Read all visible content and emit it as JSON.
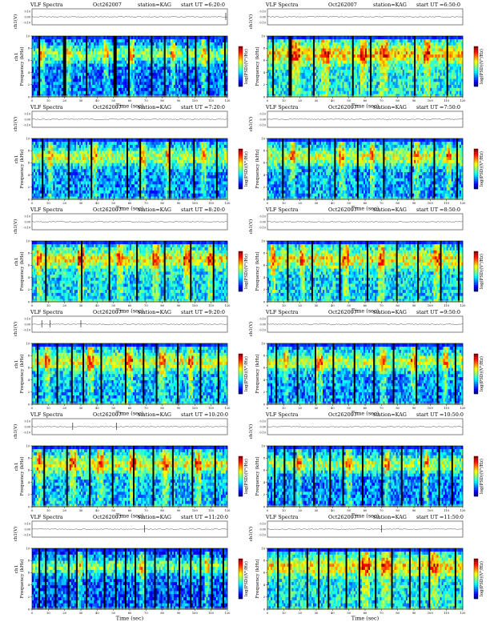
{
  "page": {
    "rows": [
      [
        "p1",
        "p2"
      ],
      [
        "p3",
        "p4"
      ],
      [
        "p5",
        "p6"
      ],
      [
        "p7",
        "p8"
      ],
      [
        "p9",
        "p10"
      ],
      [
        "p11",
        "p12"
      ]
    ]
  },
  "colors": {
    "scale": [
      "#00007f",
      "#0000ff",
      "#007fff",
      "#00ffff",
      "#7fff7f",
      "#ffff00",
      "#ff7f00",
      "#ff0000",
      "#7f0000"
    ],
    "dropout": "#000000",
    "hum_line": "#d8e04a"
  },
  "chart_data": [
    {
      "id": "p1",
      "type": "heatmap",
      "title": "VLF Spectra",
      "date": "Oct262007",
      "station": "station=KAG",
      "start": "start  UT =6:20:0",
      "ch_label": "ch1(V)",
      "ch_ticks": [
        "0.10",
        "0.00",
        "-0.10"
      ],
      "xlabel": "Time (sec)",
      "ylabel": "Frequency (kHz)",
      "ylabel_prefix": "ch1",
      "colorbar_label": "log(PSD)(V²/Hz)",
      "xlim": [
        0,
        120
      ],
      "ylim": [
        0,
        10
      ],
      "xticks": [
        "0",
        "10",
        "20",
        "30",
        "40",
        "50",
        "60",
        "70",
        "80",
        "90",
        "100",
        "110",
        "120"
      ],
      "yticks": [
        "0",
        "2",
        "4",
        "6",
        "8",
        "10"
      ],
      "intensity": 0.33,
      "seed": 11,
      "dropouts_sec": [
        4,
        19,
        20,
        33,
        50,
        51,
        59,
        73,
        81,
        95,
        100,
        108,
        118
      ],
      "bright_bands_sec": [
        [
          5,
          8
        ],
        [
          21,
          24
        ],
        [
          44,
          47
        ],
        [
          60,
          63
        ],
        [
          85,
          88
        ],
        [
          104,
          107
        ]
      ],
      "spikes_sec": [
        119
      ]
    },
    {
      "id": "p2",
      "type": "heatmap",
      "title": "VLF Spectra",
      "date": "Oct262007",
      "station": "station=KAG",
      "start": "start  UT =6:50:0",
      "ch_label": "ch1(V)",
      "ch_ticks": [
        "0.10",
        "0.00",
        "-0.10"
      ],
      "xlabel": "Time (sec)",
      "ylabel": "Frequency (kHz)",
      "ylabel_prefix": "",
      "colorbar_label": "log(PSD)(V²/Hz)",
      "xlim": [
        0,
        120
      ],
      "ylim": [
        0,
        10
      ],
      "xticks": [
        "0",
        "10",
        "20",
        "30",
        "40",
        "50",
        "60",
        "70",
        "80",
        "90",
        "100",
        "110",
        "120"
      ],
      "yticks": [
        "0",
        "2",
        "4",
        "6",
        "8",
        "10"
      ],
      "intensity": 0.55,
      "seed": 23,
      "dropouts_sec": [
        3,
        13,
        14,
        28,
        52,
        63,
        90,
        110
      ],
      "bright_bands_sec": [
        [
          15,
          20
        ],
        [
          33,
          38
        ],
        [
          57,
          61
        ],
        [
          69,
          74
        ],
        [
          96,
          100
        ]
      ],
      "spikes_sec": []
    },
    {
      "id": "p3",
      "type": "heatmap",
      "title": "VLF Spectra",
      "date": "Oct262007",
      "station": "station=KAG",
      "start": "start  UT =7:20:0",
      "ch_label": "ch1(V)",
      "ch_ticks": [
        "0.10",
        "0.00",
        "-0.10"
      ],
      "xlabel": "Time (sec)",
      "ylabel": "Frequency (kHz)",
      "ylabel_prefix": "ch1",
      "colorbar_label": "log(PSD)(V²/Hz)",
      "xlim": [
        0,
        120
      ],
      "ylim": [
        0,
        10
      ],
      "xticks": [
        "0",
        "10",
        "20",
        "30",
        "40",
        "50",
        "60",
        "70",
        "80",
        "90",
        "100",
        "110",
        "120"
      ],
      "yticks": [
        "0",
        "2",
        "4",
        "6",
        "8",
        "10"
      ],
      "intensity": 0.4,
      "seed": 37,
      "dropouts_sec": [
        6,
        22,
        36,
        58,
        66,
        84,
        99,
        113
      ],
      "bright_bands_sec": [
        [
          10,
          13
        ],
        [
          37,
          40
        ],
        [
          66,
          70
        ],
        [
          82,
          85
        ],
        [
          104,
          107
        ]
      ],
      "spikes_sec": []
    },
    {
      "id": "p4",
      "type": "heatmap",
      "title": "VLF Spectra",
      "date": "Oct262007",
      "station": "station=KAG",
      "start": "start  UT =7:50:0",
      "ch_label": "ch1(V)",
      "ch_ticks": [
        "0.10",
        "0.00",
        "-0.10"
      ],
      "xlabel": "Time (sec)",
      "ylabel": "Frequency (kHz)",
      "ylabel_prefix": "",
      "colorbar_label": "log(PSD)(V²/Hz)",
      "xlim": [
        0,
        120
      ],
      "ylim": [
        0,
        10
      ],
      "xticks": [
        "0",
        "10",
        "20",
        "30",
        "40",
        "50",
        "60",
        "70",
        "80",
        "90",
        "100",
        "110",
        "120"
      ],
      "yticks": [
        "0",
        "2",
        "4",
        "6",
        "8",
        "10"
      ],
      "intensity": 0.42,
      "seed": 41,
      "dropouts_sec": [
        9,
        25,
        41,
        55,
        71,
        88,
        102,
        116
      ],
      "bright_bands_sec": [
        [
          14,
          17
        ],
        [
          44,
          48
        ],
        [
          63,
          66
        ],
        [
          90,
          93
        ],
        [
          110,
          113
        ]
      ],
      "spikes_sec": []
    },
    {
      "id": "p5",
      "type": "heatmap",
      "title": "VLF Spectra",
      "date": "Oct262007",
      "station": "station=KAG",
      "start": "start  UT =8:20:0",
      "ch_label": "ch1(V)",
      "ch_ticks": [
        "0.10",
        "0.00",
        "-0.10"
      ],
      "xlabel": "Time (sec)",
      "ylabel": "Frequency (kHz)",
      "ylabel_prefix": "ch1",
      "colorbar_label": "log(PSD)(V²/Hz)",
      "xlim": [
        0,
        120
      ],
      "ylim": [
        0,
        10
      ],
      "xticks": [
        "0",
        "10",
        "20",
        "30",
        "40",
        "50",
        "60",
        "70",
        "80",
        "90",
        "100",
        "110",
        "120"
      ],
      "yticks": [
        "0",
        "2",
        "4",
        "6",
        "8",
        "10"
      ],
      "intensity": 0.5,
      "seed": 53,
      "dropouts_sec": [
        8,
        30,
        47,
        64,
        81,
        97,
        111
      ],
      "bright_bands_sec": [
        [
          3,
          6
        ],
        [
          28,
          32
        ],
        [
          52,
          56
        ],
        [
          74,
          78
        ],
        [
          93,
          97
        ],
        [
          108,
          111
        ]
      ],
      "spikes_sec": []
    },
    {
      "id": "p6",
      "type": "heatmap",
      "title": "VLF Spectra",
      "date": "Oct262007",
      "station": "station=KAG",
      "start": "start  UT =8:50:0",
      "ch_label": "ch1(V)",
      "ch_ticks": [
        "0.10",
        "0.00",
        "-0.10"
      ],
      "xlabel": "Time (sec)",
      "ylabel": "Frequency (kHz)",
      "ylabel_prefix": "",
      "colorbar_label": "log(PSD)(V²/Hz)",
      "xlim": [
        0,
        120
      ],
      "ylim": [
        0,
        10
      ],
      "xticks": [
        "0",
        "10",
        "20",
        "30",
        "40",
        "50",
        "60",
        "70",
        "80",
        "90",
        "100",
        "110",
        "120"
      ],
      "yticks": [
        "0",
        "2",
        "4",
        "6",
        "8",
        "10"
      ],
      "intensity": 0.5,
      "seed": 67,
      "dropouts_sec": [
        12,
        27,
        44,
        61,
        79,
        92,
        106,
        117
      ],
      "bright_bands_sec": [
        [
          2,
          5
        ],
        [
          20,
          23
        ],
        [
          46,
          50
        ],
        [
          68,
          72
        ],
        [
          102,
          106
        ]
      ],
      "spikes_sec": []
    },
    {
      "id": "p7",
      "type": "heatmap",
      "title": "VLF Spectra",
      "date": "Oct262007",
      "station": "station=KAG",
      "start": "start  UT =9:20:0",
      "ch_label": "ch1(V)",
      "ch_ticks": [
        "0.10",
        "0.00",
        "-0.10"
      ],
      "xlabel": "Time (sec)",
      "ylabel": "Frequency (kHz)",
      "ylabel_prefix": "ch1",
      "colorbar_label": "log(PSD)(V²/Hz)",
      "xlim": [
        0,
        120
      ],
      "ylim": [
        0,
        10
      ],
      "xticks": [
        "0",
        "10",
        "20",
        "30",
        "40",
        "50",
        "60",
        "70",
        "80",
        "90",
        "100",
        "110",
        "120"
      ],
      "yticks": [
        "0",
        "2",
        "4",
        "6",
        "8",
        "10"
      ],
      "intensity": 0.45,
      "seed": 71,
      "dropouts_sec": [
        3,
        15,
        24,
        31,
        42,
        57,
        68,
        76,
        89,
        103,
        114
      ],
      "bright_bands_sec": [
        [
          8,
          11
        ],
        [
          34,
          38
        ],
        [
          58,
          62
        ],
        [
          78,
          82
        ],
        [
          96,
          99
        ]
      ],
      "spikes_sec": [
        6,
        11,
        30
      ]
    },
    {
      "id": "p8",
      "type": "heatmap",
      "title": "VLF Spectra",
      "date": "Oct262007",
      "station": "station=KAG",
      "start": "start  UT =9:50:0",
      "ch_label": "ch1(V)",
      "ch_ticks": [
        "0.10",
        "0.00",
        "-0.10"
      ],
      "xlabel": "Time (sec)",
      "ylabel": "Frequency (kHz)",
      "ylabel_prefix": "",
      "colorbar_label": "log(PSD)(V²/Hz)",
      "xlim": [
        0,
        120
      ],
      "ylim": [
        0,
        10
      ],
      "xticks": [
        "0",
        "10",
        "20",
        "30",
        "40",
        "50",
        "60",
        "70",
        "80",
        "90",
        "100",
        "110",
        "120"
      ],
      "yticks": [
        "0",
        "2",
        "4",
        "6",
        "8",
        "10"
      ],
      "intensity": 0.4,
      "seed": 83,
      "dropouts_sec": [
        5,
        18,
        29,
        40,
        53,
        65,
        77,
        91,
        104,
        115
      ],
      "bright_bands_sec": [
        [
          10,
          13
        ],
        [
          30,
          34
        ],
        [
          69,
          73
        ],
        [
          88,
          91
        ],
        [
          108,
          111
        ]
      ],
      "spikes_sec": []
    },
    {
      "id": "p9",
      "type": "heatmap",
      "title": "VLF Spectra",
      "date": "Oct262007",
      "station": "station=KAG",
      "start": "start  UT =10:20:0",
      "ch_label": "ch1(V)",
      "ch_ticks": [
        "0.10",
        "0.00",
        "-0.10"
      ],
      "xlabel": "Time (sec)",
      "ylabel": "Frequency (kHz)",
      "ylabel_prefix": "ch1",
      "colorbar_label": "log(PSD)(V²/Hz)",
      "xlim": [
        0,
        120
      ],
      "ylim": [
        0,
        10
      ],
      "xticks": [
        "0",
        "10",
        "20",
        "30",
        "40",
        "50",
        "60",
        "70",
        "80",
        "90",
        "100",
        "110",
        "120"
      ],
      "yticks": [
        "0",
        "2",
        "4",
        "6",
        "8",
        "10"
      ],
      "intensity": 0.45,
      "seed": 97,
      "dropouts_sec": [
        7,
        21,
        35,
        49,
        62,
        74,
        86,
        98,
        112
      ],
      "bright_bands_sec": [
        [
          3,
          6
        ],
        [
          23,
          27
        ],
        [
          40,
          44
        ],
        [
          60,
          64
        ],
        [
          80,
          84
        ],
        [
          100,
          104
        ]
      ],
      "spikes_sec": [
        25,
        52
      ]
    },
    {
      "id": "p10",
      "type": "heatmap",
      "title": "VLF Spectra",
      "date": "Oct262007",
      "station": "station=KAG",
      "start": "start  UT =10:50:0",
      "ch_label": "ch1(V)",
      "ch_ticks": [
        "0.10",
        "0.00",
        "-0.10"
      ],
      "xlabel": "Time (sec)",
      "ylabel": "Frequency (kHz)",
      "ylabel_prefix": "",
      "colorbar_label": "log(PSD)(V²/Hz)",
      "xlim": [
        0,
        120
      ],
      "ylim": [
        0,
        10
      ],
      "xticks": [
        "0",
        "10",
        "20",
        "30",
        "40",
        "50",
        "60",
        "70",
        "80",
        "90",
        "100",
        "110",
        "120"
      ],
      "yticks": [
        "0",
        "2",
        "4",
        "6",
        "8",
        "10"
      ],
      "intensity": 0.38,
      "seed": 101,
      "dropouts_sec": [
        4,
        10,
        16,
        28,
        38,
        46,
        58,
        70,
        82,
        94,
        105,
        113
      ],
      "bright_bands_sec": [
        [
          18,
          21
        ],
        [
          48,
          52
        ],
        [
          72,
          75
        ],
        [
          96,
          99
        ]
      ],
      "spikes_sec": []
    },
    {
      "id": "p11",
      "type": "heatmap",
      "title": "VLF Spectra",
      "date": "Oct262007",
      "station": "station=KAG",
      "start": "start  UT =11:20:0",
      "ch_label": "ch1(V)",
      "ch_ticks": [
        "0.10",
        "0.00",
        "-0.10"
      ],
      "xlabel": "Time (sec)",
      "ylabel": "Frequency (kHz)",
      "ylabel_prefix": "ch1",
      "colorbar_label": "log(PSD)(V²/Hz)",
      "xlim": [
        0,
        120
      ],
      "ylim": [
        0,
        10
      ],
      "xticks": [
        "0",
        "10",
        "20",
        "30",
        "40",
        "50",
        "60",
        "70",
        "80",
        "90",
        "100",
        "110",
        "120"
      ],
      "yticks": [
        "0",
        "2",
        "4",
        "6",
        "8",
        "10"
      ],
      "intensity": 0.3,
      "seed": 113,
      "dropouts_sec": [
        4,
        8,
        14,
        22,
        27,
        33,
        44,
        51,
        57,
        63,
        69,
        75,
        83,
        90,
        97,
        103,
        110,
        117
      ],
      "bright_bands_sec": [
        [
          28,
          31
        ],
        [
          66,
          69
        ],
        [
          106,
          109
        ]
      ],
      "spikes_sec": [
        69
      ]
    },
    {
      "id": "p12",
      "type": "heatmap",
      "title": "VLF Spectra",
      "date": "Oct262007",
      "station": "station=KAG",
      "start": "start  UT =11:50:0",
      "ch_label": "ch1(V)",
      "ch_ticks": [
        "0.10",
        "0.00",
        "-0.10"
      ],
      "xlabel": "Time (sec)",
      "ylabel": "Frequency (kHz)",
      "ylabel_prefix": "",
      "colorbar_label": "log(PSD)(V²/Hz)",
      "xlim": [
        0,
        120
      ],
      "ylim": [
        0,
        10
      ],
      "xticks": [
        "0",
        "10",
        "20",
        "30",
        "40",
        "50",
        "60",
        "70",
        "80",
        "90",
        "100",
        "110",
        "120"
      ],
      "yticks": [
        "0",
        "2",
        "4",
        "6",
        "8",
        "10"
      ],
      "intensity": 0.52,
      "seed": 127,
      "dropouts_sec": [
        6,
        13,
        24,
        31,
        37,
        48,
        56,
        66,
        76,
        87,
        93,
        99,
        115
      ],
      "bright_bands_sec": [
        [
          58,
          63
        ],
        [
          70,
          76
        ],
        [
          100,
          105
        ]
      ],
      "spikes_sec": [
        70
      ]
    }
  ]
}
